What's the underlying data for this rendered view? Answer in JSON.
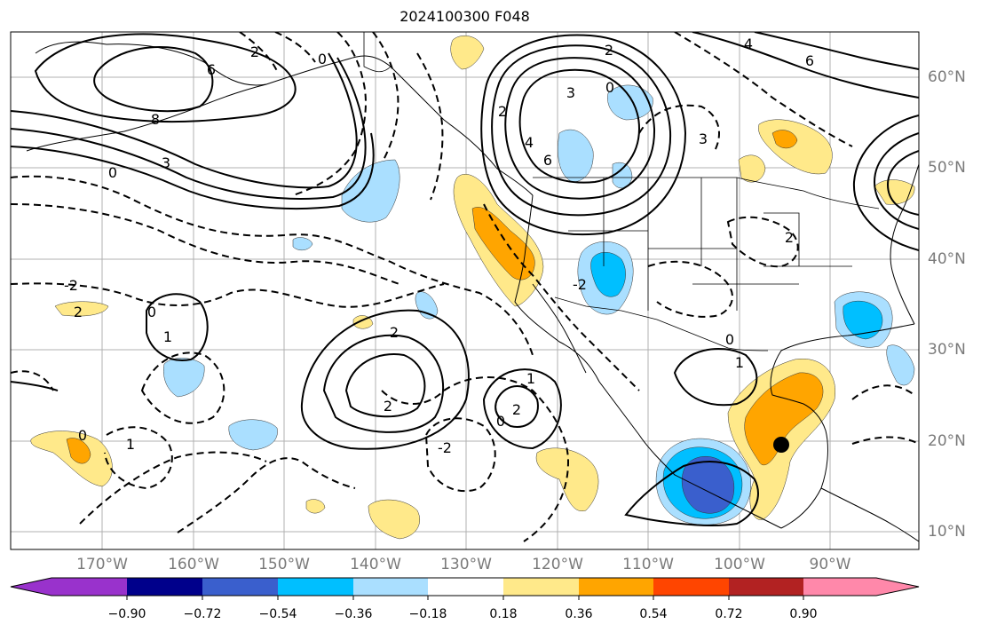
{
  "title": "2024100300 F048",
  "map": {
    "lat_labels": [
      "60°N",
      "50°N",
      "40°N",
      "30°N",
      "20°N",
      "10°N"
    ],
    "lon_labels": [
      "170°W",
      "160°W",
      "150°W",
      "140°W",
      "130°W",
      "120°W",
      "110°W",
      "100°W",
      "90°W"
    ],
    "contour_labels": [
      "6",
      "8",
      "3",
      "0",
      "2",
      "0",
      "3",
      "6",
      "2",
      "4",
      "3",
      "4",
      "6",
      "0",
      "2",
      "-2",
      "2",
      "0",
      "1",
      "2",
      "2",
      "0",
      "1",
      "0",
      "1",
      "2",
      "0",
      "1",
      "-2",
      "-2",
      "2"
    ],
    "storm_marker": "tropical-cyclone-position"
  },
  "colorbar": {
    "colors": [
      "#9932cc",
      "#00008b",
      "#3a5fcd",
      "#00bfff",
      "#aadfff",
      "#ffffff",
      "#ffe98a",
      "#ffa500",
      "#ff4500",
      "#b22222",
      "#ff88aa"
    ],
    "tick_labels": [
      "−0.90",
      "−0.72",
      "−0.54",
      "−0.36",
      "−0.18",
      "0.18",
      "0.36",
      "0.54",
      "0.72",
      "0.90"
    ]
  },
  "colors": {
    "gridline": "#b0b0b0",
    "axis_label": "#7a7a7a",
    "contour": "#000000"
  }
}
